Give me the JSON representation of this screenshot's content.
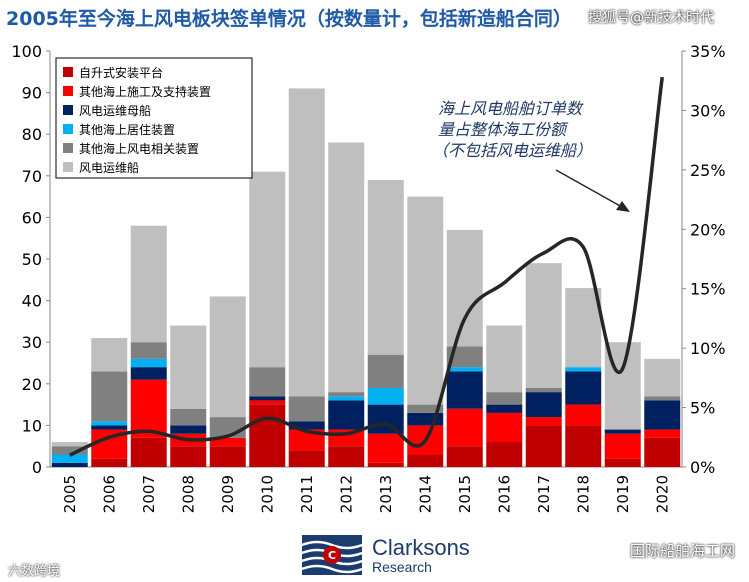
{
  "title": "2005年至今海上风电板块签单情况（按数量计，包括新造船合同）",
  "watermark_top": "搜狐号@新技术时代",
  "watermark_bottom_right": "国际船舶海工网",
  "watermark_bottom_left": "六数跨境",
  "brand": {
    "name": "Clarksons",
    "sub": "Research",
    "logo_letter": "C"
  },
  "annotation": "海上风电船舶订单数\n量占整体海工份额\n（不包括风电运维船）",
  "colors": {
    "self_elevating": "#c00000",
    "other_construction": "#ff0000",
    "sov": "#002060",
    "accommodation": "#00b0f0",
    "other_related": "#808080",
    "ctv": "#bfbfbf",
    "share_line": "#262626"
  },
  "chart_data": {
    "type": "bar",
    "stacked": true,
    "categories": [
      "2005",
      "2006",
      "2007",
      "2008",
      "2009",
      "2010",
      "2011",
      "2012",
      "2013",
      "2014",
      "2015",
      "2016",
      "2017",
      "2018",
      "2019",
      "2020"
    ],
    "ylim": [
      0,
      100
    ],
    "yticks": [
      0,
      10,
      20,
      30,
      40,
      50,
      60,
      70,
      80,
      90,
      100
    ],
    "y2lim": [
      0,
      35
    ],
    "y2ticks": [
      "0%",
      "5%",
      "10%",
      "15%",
      "20%",
      "25%",
      "30%",
      "35%"
    ],
    "legend_position": "top-left",
    "series": [
      {
        "name": "自升式安装平台",
        "key": "self_elevating",
        "values": [
          0,
          2,
          7,
          5,
          5,
          15,
          4,
          5,
          1,
          3,
          5,
          6,
          10,
          10,
          2,
          7
        ]
      },
      {
        "name": "其他海上施工及支持装置",
        "key": "other_construction",
        "values": [
          0,
          7,
          14,
          3,
          2,
          1,
          5,
          4,
          7,
          7,
          9,
          7,
          2,
          5,
          6,
          2
        ]
      },
      {
        "name": "风电运维母船",
        "key": "sov",
        "values": [
          1,
          1,
          3,
          2,
          0,
          1,
          2,
          7,
          7,
          3,
          9,
          2,
          6,
          8,
          1,
          7
        ]
      },
      {
        "name": "其他海上居住装置",
        "key": "accommodation",
        "values": [
          2,
          1,
          2,
          0,
          0,
          0,
          0,
          1,
          4,
          0,
          1,
          0,
          0,
          1,
          0,
          0
        ]
      },
      {
        "name": "其他海上风电相关装置",
        "key": "other_related",
        "values": [
          2,
          12,
          4,
          4,
          5,
          7,
          6,
          1,
          8,
          2,
          5,
          3,
          1,
          0,
          0,
          1
        ]
      },
      {
        "name": "风电运维船",
        "key": "ctv",
        "values": [
          1,
          8,
          28,
          20,
          29,
          47,
          74,
          60,
          42,
          50,
          28,
          16,
          30,
          19,
          21,
          9
        ]
      }
    ],
    "line": {
      "name": "海上风电船舶订单数量占整体海工份额（不包括风电运维船）",
      "axis": "secondary",
      "x": [
        2005,
        2006,
        2007,
        2008,
        2009,
        2010,
        2011,
        2012,
        2013,
        2014,
        2015,
        2016,
        2017,
        2018,
        2019,
        2020
      ],
      "values": [
        1.0,
        2.5,
        3.0,
        2.3,
        2.6,
        4.1,
        3.0,
        2.8,
        3.6,
        2.2,
        12.5,
        15.5,
        18.0,
        18.5,
        8.3,
        32.8
      ]
    }
  }
}
